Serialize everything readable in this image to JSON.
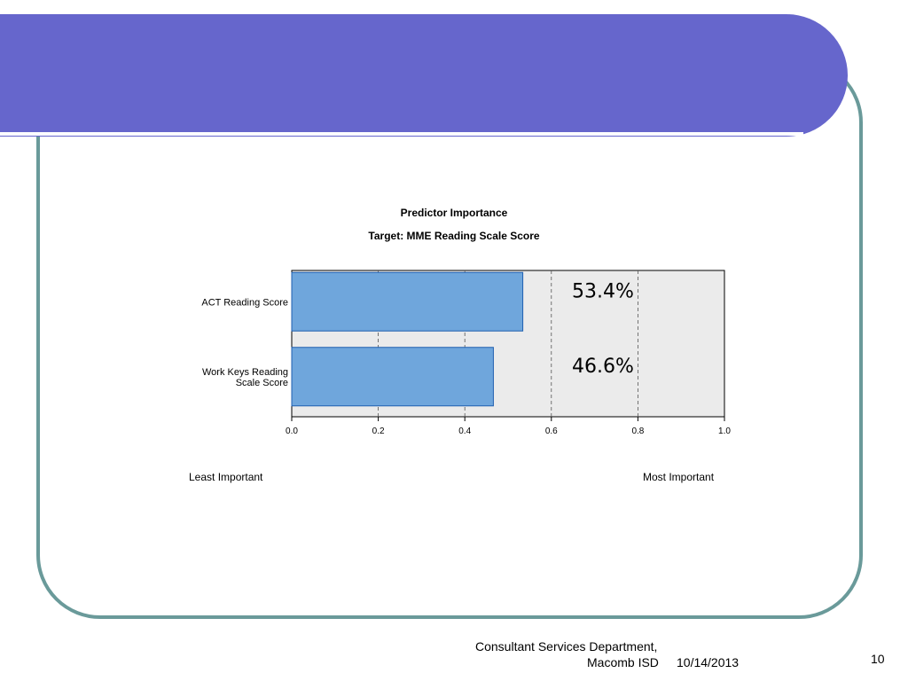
{
  "footer": {
    "department_line1": "Consultant Services Department,",
    "department_line2": "Macomb ISD",
    "date": "10/14/2013",
    "page_number": "10"
  },
  "theme": {
    "header_color": "#6666cc",
    "frame_color": "#6a9a9a",
    "bar_color": "#6fa6dc",
    "bar_edge": "#1f5fb0",
    "plot_bg": "#ebebeb"
  },
  "chart_data": {
    "type": "bar",
    "orientation": "horizontal",
    "title": "Predictor Importance",
    "subtitle": "Target: MME Reading Scale Score",
    "categories": [
      [
        "ACT Reading Score"
      ],
      [
        "Work Keys Reading",
        "Scale Score"
      ]
    ],
    "values": [
      0.534,
      0.466
    ],
    "data_labels": [
      "53.4%",
      "46.6%"
    ],
    "xlim": [
      0.0,
      1.0
    ],
    "xticks": [
      "0.0",
      "0.2",
      "0.4",
      "0.6",
      "0.8",
      "1.0"
    ],
    "grid": true,
    "legend_low": "Least Important",
    "legend_high": "Most Important"
  }
}
